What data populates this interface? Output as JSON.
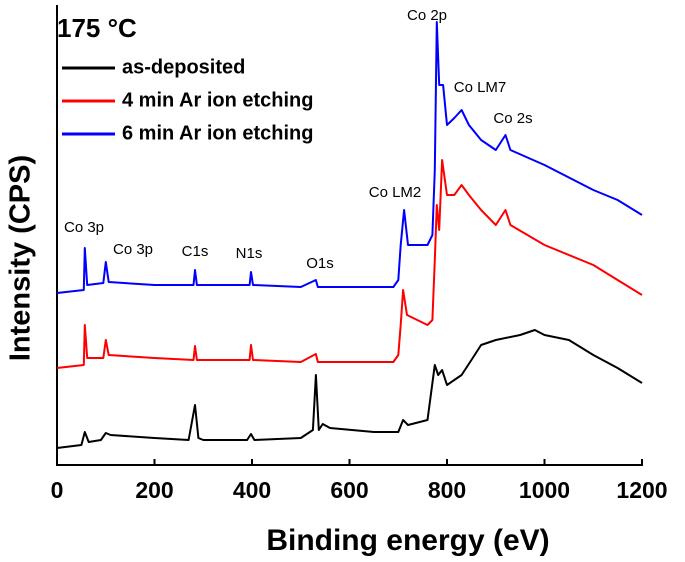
{
  "chart_data": {
    "type": "line",
    "title": "175 °C",
    "x_label": "Binding energy (eV)",
    "y_label": "Intensity (CPS)",
    "xlim": [
      0,
      1200
    ],
    "xticks": [
      0,
      200,
      400,
      600,
      800,
      1000,
      1200
    ],
    "ylim": [
      0,
      460
    ],
    "legend": "upper left",
    "series": [
      {
        "name": "as-deposited",
        "color": "#000000",
        "x": [
          0,
          50,
          57,
          65,
          90,
          100,
          110,
          200,
          270,
          283,
          290,
          300,
          390,
          398,
          405,
          500,
          525,
          531,
          537,
          545,
          560,
          650,
          700,
          710,
          720,
          760,
          775,
          782,
          790,
          800,
          815,
          830,
          850,
          870,
          900,
          950,
          980,
          1000,
          1050,
          1100,
          1150,
          1200
        ],
        "values": [
          17,
          20,
          33,
          23,
          25,
          32,
          30,
          27,
          25,
          60,
          27,
          25,
          25,
          31,
          25,
          27,
          35,
          90,
          35,
          41,
          37,
          33,
          33,
          45,
          40,
          45,
          100,
          90,
          95,
          80,
          85,
          90,
          105,
          120,
          125,
          130,
          135,
          130,
          125,
          110,
          97,
          82
        ]
      },
      {
        "name": "4 min Ar ion etching",
        "color": "#ff0000",
        "x": [
          0,
          55,
          57,
          62,
          95,
          100,
          106,
          200,
          280,
          283,
          287,
          395,
          398,
          402,
          500,
          531,
          535,
          690,
          700,
          705,
          710,
          718,
          760,
          770,
          775,
          779,
          784,
          790,
          800,
          815,
          830,
          845,
          870,
          900,
          920,
          930,
          1000,
          1100,
          1150,
          1200
        ],
        "values": [
          97,
          100,
          140,
          107,
          107,
          125,
          110,
          107,
          105,
          119,
          105,
          105,
          120,
          105,
          103,
          111,
          103,
          103,
          110,
          140,
          175,
          150,
          140,
          145,
          205,
          260,
          235,
          305,
          270,
          270,
          280,
          270,
          255,
          240,
          255,
          240,
          220,
          200,
          185,
          170
        ]
      },
      {
        "name": "6 min Ar ion etching",
        "color": "#0000ff",
        "x": [
          0,
          55,
          57,
          62,
          95,
          100,
          106,
          200,
          280,
          283,
          287,
          395,
          398,
          402,
          500,
          531,
          535,
          690,
          700,
          705,
          712,
          720,
          760,
          770,
          775,
          779,
          784,
          792,
          800,
          815,
          830,
          845,
          870,
          900,
          920,
          930,
          1000,
          1100,
          1150,
          1200
        ],
        "values": [
          172,
          175,
          217,
          180,
          182,
          203,
          183,
          180,
          180,
          195,
          180,
          180,
          193,
          180,
          178,
          185,
          178,
          178,
          185,
          220,
          255,
          220,
          220,
          230,
          295,
          443,
          380,
          380,
          340,
          347,
          355,
          340,
          325,
          315,
          330,
          315,
          300,
          275,
          265,
          250
        ]
      }
    ],
    "annotations": [
      "Co 3p",
      "Co 3p",
      "C1s",
      "N1s",
      "O1s",
      "Co LM2",
      "Co 2p",
      "Co LM7",
      "Co 2s"
    ]
  }
}
